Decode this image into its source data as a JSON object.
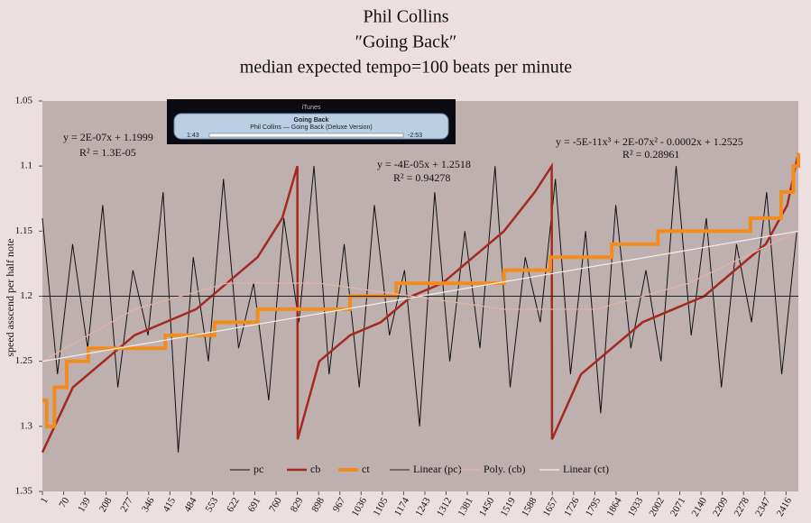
{
  "chart_data": {
    "type": "line",
    "title": "Phil Collins",
    "subtitle": "″Going Back″",
    "subtitle2": "median expected tempo=100 beats per minute",
    "y_label": "speed asscend per half note",
    "y_inverted": true,
    "ylim": [
      1.05,
      1.35
    ],
    "yticks": [
      1.05,
      1.1,
      1.15,
      1.2,
      1.25,
      1.3,
      1.35
    ],
    "xlim": [
      1,
      2456
    ],
    "xticks": [
      1,
      70,
      139,
      208,
      277,
      346,
      415,
      484,
      553,
      622,
      691,
      760,
      829,
      898,
      967,
      1036,
      1105,
      1174,
      1243,
      1312,
      1381,
      1450,
      1519,
      1588,
      1657,
      1726,
      1795,
      1864,
      1933,
      2002,
      2071,
      2140,
      2209,
      2278,
      2347,
      2416
    ],
    "series": [
      {
        "name": "pc",
        "color": "#111111",
        "x": [
          1,
          50,
          99,
          148,
          197,
          246,
          295,
          344,
          393,
          442,
          491,
          540,
          589,
          638,
          687,
          736,
          785,
          834,
          883,
          932,
          981,
          1030,
          1079,
          1128,
          1177,
          1226,
          1275,
          1324,
          1373,
          1422,
          1471,
          1520,
          1569,
          1618,
          1667,
          1716,
          1765,
          1814,
          1863,
          1912,
          1961,
          2010,
          2059,
          2108,
          2157,
          2206,
          2255,
          2304,
          2353,
          2402,
          2451
        ],
        "values": [
          1.14,
          1.26,
          1.16,
          1.24,
          1.13,
          1.27,
          1.18,
          1.23,
          1.12,
          1.32,
          1.17,
          1.25,
          1.11,
          1.24,
          1.19,
          1.28,
          1.14,
          1.22,
          1.1,
          1.26,
          1.16,
          1.27,
          1.13,
          1.23,
          1.18,
          1.3,
          1.12,
          1.25,
          1.15,
          1.24,
          1.1,
          1.27,
          1.17,
          1.22,
          1.11,
          1.26,
          1.15,
          1.29,
          1.13,
          1.24,
          1.18,
          1.25,
          1.1,
          1.23,
          1.14,
          1.27,
          1.16,
          1.22,
          1.12,
          1.26,
          1.15
        ]
      },
      {
        "name": "cb",
        "color": "#a52a1e",
        "x": [
          1,
          100,
          200,
          300,
          400,
          500,
          600,
          700,
          780,
          829,
          830,
          900,
          1000,
          1100,
          1200,
          1300,
          1400,
          1500,
          1600,
          1655,
          1656,
          1750,
          1850,
          1950,
          2050,
          2150,
          2250,
          2350,
          2420,
          2456
        ],
        "values": [
          1.32,
          1.27,
          1.25,
          1.23,
          1.22,
          1.21,
          1.19,
          1.17,
          1.14,
          1.1,
          1.31,
          1.25,
          1.23,
          1.22,
          1.2,
          1.19,
          1.17,
          1.15,
          1.12,
          1.1,
          1.31,
          1.26,
          1.24,
          1.22,
          1.21,
          1.2,
          1.18,
          1.16,
          1.13,
          1.09
        ]
      },
      {
        "name": "ct",
        "color": "#f28c1e",
        "step": true,
        "x": [
          1,
          15,
          40,
          80,
          150,
          250,
          400,
          560,
          700,
          900,
          1000,
          1150,
          1300,
          1500,
          1650,
          1850,
          2000,
          2200,
          2300,
          2400,
          2440,
          2456
        ],
        "values": [
          1.28,
          1.3,
          1.27,
          1.25,
          1.24,
          1.24,
          1.23,
          1.22,
          1.21,
          1.21,
          1.2,
          1.19,
          1.19,
          1.18,
          1.17,
          1.16,
          1.15,
          1.15,
          1.14,
          1.12,
          1.1,
          1.09
        ]
      },
      {
        "name": "Linear (pc)",
        "color": "#222222",
        "x": [
          1,
          2456
        ],
        "values": [
          1.2,
          1.2
        ]
      },
      {
        "name": "Poly. (cb)",
        "color": "#e8b0a8",
        "x": [
          1,
          300,
          600,
          900,
          1200,
          1500,
          1800,
          2100,
          2456
        ],
        "values": [
          1.25,
          1.21,
          1.19,
          1.19,
          1.2,
          1.21,
          1.21,
          1.19,
          1.15
        ]
      },
      {
        "name": "Linear (ct)",
        "color": "#f4eeee",
        "x": [
          1,
          2456
        ],
        "values": [
          1.25,
          1.15
        ]
      }
    ],
    "annotations": [
      "y = 2E-07x + 1.1999",
      "R² = 1.3E-05",
      "y = -4E-05x + 1.2518",
      "R² = 0.94278",
      "y = -5E-11x³ + 2E-07x² - 0.0002x + 1.2525",
      "R² = 0.28961"
    ]
  },
  "itunes": {
    "window_title": "iTunes",
    "track": "Going Back",
    "artist_album": "Phil Collins — Going Back (Deluxe Version)",
    "elapsed": "1:43",
    "remaining": "-2:53"
  }
}
